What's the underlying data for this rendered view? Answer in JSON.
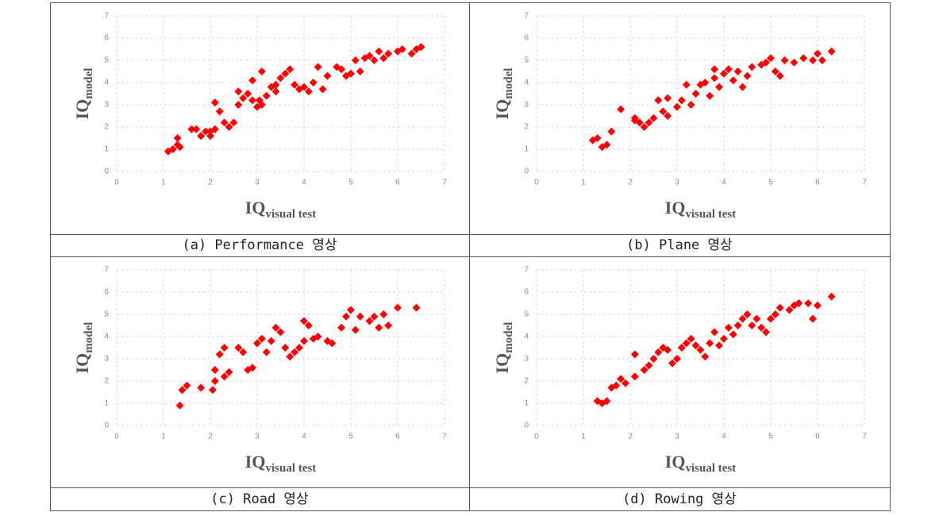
{
  "chart_data": [
    {
      "type": "scatter",
      "caption": "(a) Performance 영상",
      "color": "#ff0000",
      "xlabel": {
        "text": "IQ",
        "sub": "visual test"
      },
      "ylabel": {
        "text": "IQ",
        "sub": "model"
      },
      "xlim": [
        0,
        7
      ],
      "ylim": [
        0,
        7
      ],
      "xticks": [
        0,
        1,
        2,
        3,
        4,
        5,
        6,
        7
      ],
      "yticks": [
        0,
        1,
        2,
        3,
        4,
        5,
        6,
        7
      ],
      "grid": true,
      "x": [
        1.1,
        1.2,
        1.3,
        1.35,
        1.3,
        1.6,
        1.7,
        1.9,
        1.8,
        2.0,
        2.0,
        2.1,
        2.2,
        2.1,
        2.3,
        2.4,
        2.5,
        2.6,
        2.6,
        2.7,
        2.8,
        2.9,
        2.9,
        3.0,
        3.05,
        3.1,
        3.1,
        3.2,
        3.3,
        3.4,
        3.4,
        3.5,
        3.6,
        3.7,
        3.8,
        3.9,
        4.0,
        4.1,
        4.2,
        4.3,
        4.4,
        4.5,
        4.7,
        4.8,
        4.9,
        5.0,
        5.1,
        5.2,
        5.3,
        5.4,
        5.5,
        5.6,
        5.7,
        5.8,
        6.0,
        6.1,
        6.3,
        6.4,
        6.5
      ],
      "values": [
        0.9,
        1.0,
        1.5,
        1.1,
        1.2,
        1.9,
        1.9,
        1.8,
        1.6,
        1.6,
        1.8,
        3.1,
        2.7,
        1.9,
        2.2,
        2.0,
        2.2,
        3.0,
        3.6,
        3.3,
        3.5,
        3.2,
        4.1,
        2.9,
        3.2,
        3.0,
        4.5,
        3.4,
        3.8,
        3.6,
        3.9,
        4.2,
        4.4,
        4.6,
        3.9,
        3.7,
        3.8,
        3.6,
        4.0,
        4.7,
        3.7,
        4.3,
        4.7,
        4.6,
        4.3,
        4.4,
        5.0,
        4.5,
        5.1,
        5.2,
        5.0,
        5.4,
        5.1,
        5.3,
        5.4,
        5.5,
        5.3,
        5.5,
        5.6
      ]
    },
    {
      "type": "scatter",
      "caption": "(b) Plane 영상",
      "color": "#ff0000",
      "xlabel": {
        "text": "IQ",
        "sub": "visual test"
      },
      "ylabel": {
        "text": "IQ",
        "sub": "model"
      },
      "xlim": [
        0,
        7
      ],
      "ylim": [
        0,
        7
      ],
      "xticks": [
        0,
        1,
        2,
        3,
        4,
        5,
        6,
        7
      ],
      "yticks": [
        0,
        1,
        2,
        3,
        4,
        5,
        6,
        7
      ],
      "grid": true,
      "x": [
        1.2,
        1.3,
        1.4,
        1.5,
        1.6,
        1.8,
        2.1,
        2.1,
        2.2,
        2.3,
        2.4,
        2.5,
        2.6,
        2.7,
        2.8,
        2.8,
        3.0,
        3.1,
        3.2,
        3.3,
        3.4,
        3.5,
        3.6,
        3.7,
        3.8,
        3.8,
        3.9,
        4.0,
        4.1,
        4.2,
        4.3,
        4.4,
        4.5,
        4.6,
        4.8,
        4.9,
        5.0,
        5.1,
        5.2,
        5.3,
        5.5,
        5.7,
        5.9,
        6.0,
        6.1,
        6.3
      ],
      "values": [
        1.4,
        1.5,
        1.1,
        1.2,
        1.8,
        2.8,
        2.3,
        2.4,
        2.2,
        2.0,
        2.2,
        2.4,
        3.2,
        2.7,
        3.3,
        2.5,
        2.9,
        3.2,
        3.9,
        3.0,
        3.5,
        3.9,
        4.0,
        3.4,
        4.2,
        4.6,
        3.8,
        4.4,
        4.6,
        4.1,
        4.5,
        3.8,
        4.3,
        4.7,
        4.8,
        4.9,
        5.1,
        4.5,
        4.3,
        5.0,
        4.9,
        5.1,
        5.0,
        5.3,
        5.0,
        5.4
      ]
    },
    {
      "type": "scatter",
      "caption": "(c) Road 영상",
      "color": "#ff0000",
      "xlabel": {
        "text": "IQ",
        "sub": "visual test"
      },
      "ylabel": {
        "text": "IQ",
        "sub": "model"
      },
      "xlim": [
        0,
        7
      ],
      "ylim": [
        0,
        7
      ],
      "xticks": [
        0,
        1,
        2,
        3,
        4,
        5,
        6,
        7
      ],
      "yticks": [
        0,
        1,
        2,
        3,
        4,
        5,
        6,
        7
      ],
      "grid": true,
      "x": [
        1.35,
        1.4,
        1.5,
        1.8,
        2.05,
        2.1,
        2.1,
        2.2,
        2.3,
        2.3,
        2.4,
        2.6,
        2.7,
        2.8,
        2.9,
        3.0,
        3.1,
        3.2,
        3.3,
        3.4,
        3.5,
        3.6,
        3.7,
        3.8,
        3.9,
        4.0,
        4.0,
        4.1,
        4.2,
        4.3,
        4.5,
        4.6,
        4.8,
        4.9,
        5.0,
        5.1,
        5.2,
        5.4,
        5.5,
        5.6,
        5.7,
        5.8,
        6.0,
        6.4
      ],
      "values": [
        0.9,
        1.6,
        1.8,
        1.7,
        1.6,
        2.0,
        2.5,
        3.2,
        3.5,
        2.2,
        2.4,
        3.5,
        3.3,
        2.5,
        2.6,
        3.7,
        3.9,
        3.3,
        3.8,
        4.4,
        4.2,
        3.5,
        3.1,
        3.3,
        3.5,
        3.8,
        4.7,
        4.5,
        3.9,
        4.0,
        3.8,
        3.7,
        4.4,
        4.9,
        5.2,
        4.3,
        4.9,
        4.7,
        4.9,
        4.4,
        5.0,
        4.5,
        5.3,
        5.3
      ]
    },
    {
      "type": "scatter",
      "caption": "(d) Rowing 영상",
      "color": "#ff0000",
      "xlabel": {
        "text": "IQ",
        "sub": "visual test"
      },
      "ylabel": {
        "text": "IQ",
        "sub": "model"
      },
      "xlim": [
        0,
        7
      ],
      "ylim": [
        0,
        7
      ],
      "xticks": [
        0,
        1,
        2,
        3,
        4,
        5,
        6,
        7
      ],
      "yticks": [
        0,
        1,
        2,
        3,
        4,
        5,
        6,
        7
      ],
      "grid": true,
      "x": [
        1.3,
        1.4,
        1.5,
        1.6,
        1.7,
        1.8,
        1.9,
        2.1,
        2.1,
        2.3,
        2.4,
        2.5,
        2.6,
        2.7,
        2.8,
        2.9,
        3.0,
        3.1,
        3.2,
        3.3,
        3.4,
        3.5,
        3.6,
        3.7,
        3.8,
        3.9,
        4.0,
        4.1,
        4.2,
        4.3,
        4.4,
        4.5,
        4.6,
        4.7,
        4.8,
        4.9,
        5.0,
        5.1,
        5.2,
        5.4,
        5.5,
        5.6,
        5.8,
        5.9,
        6.0,
        6.3
      ],
      "values": [
        1.1,
        1.0,
        1.1,
        1.7,
        1.8,
        2.1,
        1.9,
        3.2,
        2.2,
        2.5,
        2.7,
        3.0,
        3.3,
        3.5,
        3.4,
        2.8,
        3.0,
        3.5,
        3.7,
        3.9,
        3.6,
        3.4,
        3.1,
        3.7,
        4.2,
        3.6,
        3.9,
        4.4,
        4.1,
        4.5,
        4.8,
        5.0,
        4.5,
        4.8,
        4.4,
        4.2,
        4.8,
        5.0,
        5.3,
        5.2,
        5.4,
        5.5,
        5.5,
        4.8,
        5.4,
        5.8
      ]
    }
  ]
}
